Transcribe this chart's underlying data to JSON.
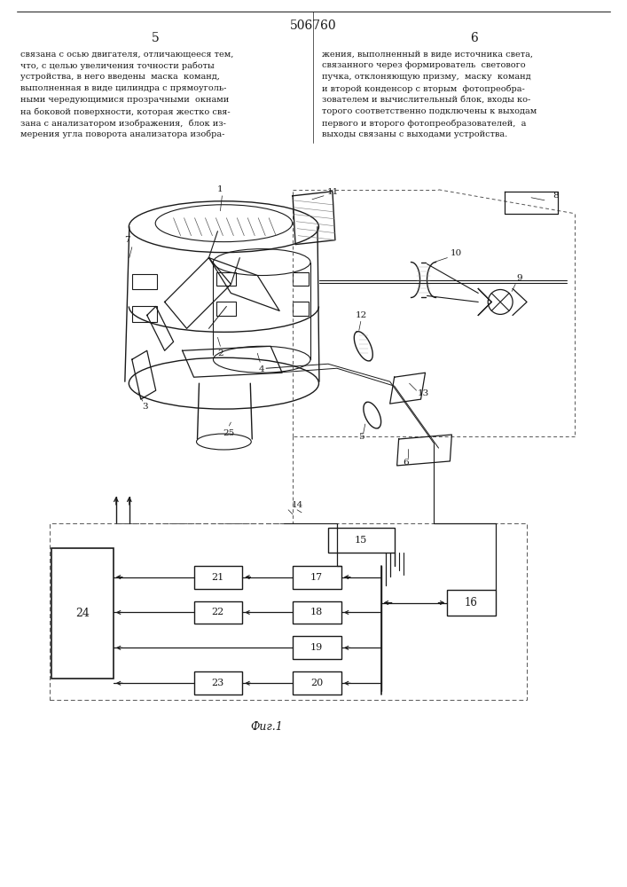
{
  "page_number": "506760",
  "col_left": "5",
  "col_right": "6",
  "text_left": "связана с осью двигателя, отличающееся тем,\nчто, с целью увеличения точности работы\nустройства, в него введены  маска  команд,\nвыполненная в виде цилиндра с прямоуголь-\nными чередующимися прозрачными  окнами\nна боковой поверхности, которая жестко свя-\nзана с анализатором изображения,  блок из-\nмерения угла поворота анализатора изобра-",
  "text_right": "жения, выполненный в виде источника света,\nсвязанного через формирователь  светового\nпучка, отклоняющую призму,  маску  команд\nи второй конденсор с вторым  фотопреобра-\nзователем и вычислительный блок, входы ко-\nторого соответственно подключены к выходам\nпервого и второго фотопреобразователей,  а\nвыходы связаны с выходами устройства.",
  "caption": "Фиг.1",
  "bg_color": "#ffffff",
  "line_color": "#1a1a1a"
}
